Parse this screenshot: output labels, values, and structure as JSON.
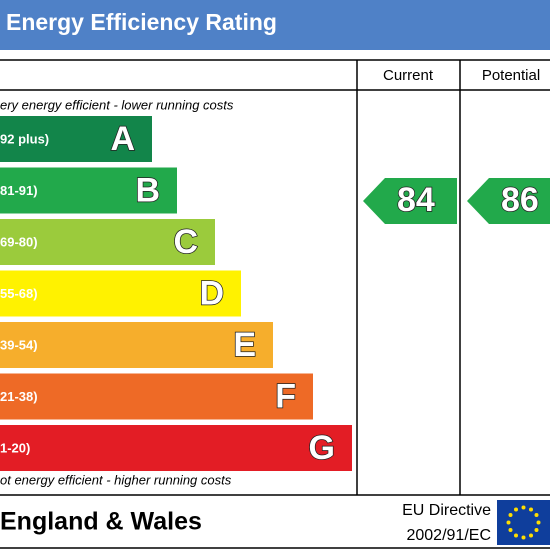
{
  "header": {
    "title": "Energy Efficiency Rating"
  },
  "columns": {
    "current": "Current",
    "potential": "Potential"
  },
  "top_note": "ery energy efficient - lower running costs",
  "bottom_note": "ot energy efficient - higher running costs",
  "bands": [
    {
      "letter": "A",
      "range": "92 plus)",
      "color": "#12854a"
    },
    {
      "letter": "B",
      "range": "81-91)",
      "color": "#22a94b"
    },
    {
      "letter": "C",
      "range": "69-80)",
      "color": "#9bcb3c"
    },
    {
      "letter": "D",
      "range": "55-68)",
      "color": "#fff200"
    },
    {
      "letter": "E",
      "range": "39-54)",
      "color": "#f6ae2c"
    },
    {
      "letter": "F",
      "range": "21-38)",
      "color": "#ee6a26"
    },
    {
      "letter": "G",
      "range": "1-20)",
      "color": "#e31d25"
    }
  ],
  "ratings": {
    "current": 84,
    "potential": 86,
    "color": "#22a94b"
  },
  "footer": {
    "region": "England & Wales",
    "directive_line1": "EU Directive",
    "directive_line2": "2002/91/EC"
  }
}
